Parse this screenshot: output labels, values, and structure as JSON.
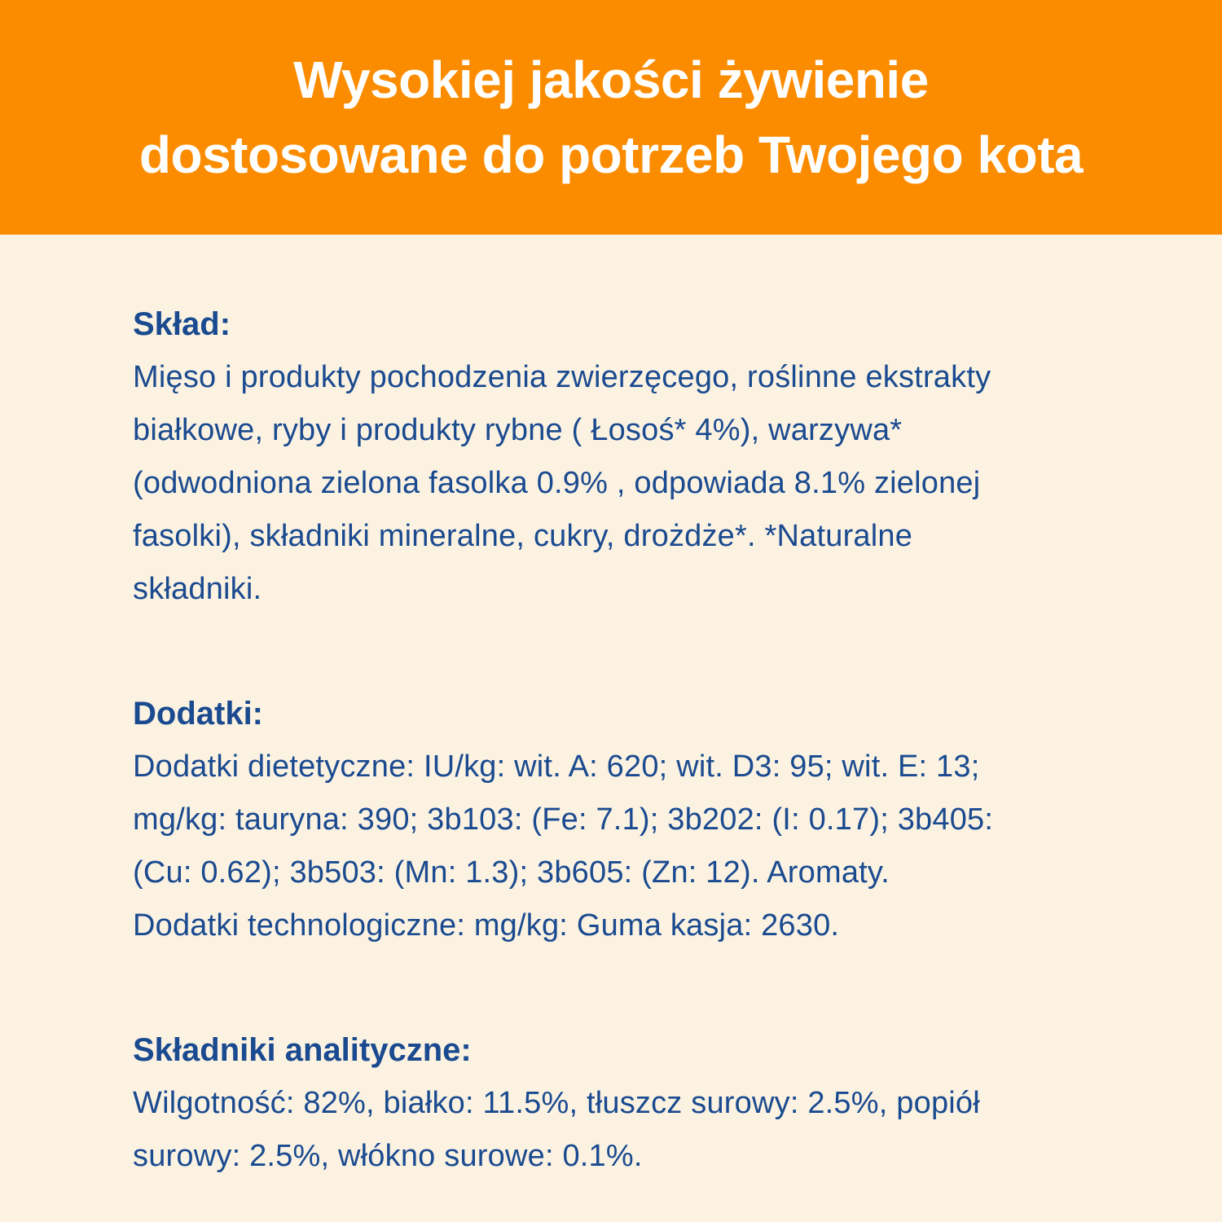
{
  "header": {
    "title": "Wysokiej jakości żywienie\ndostosowane do potrzeb Twojego kota",
    "background_color": "#FB8C00",
    "text_color": "#FFFFFF"
  },
  "page": {
    "background_color": "#FCF2E2",
    "text_color": "#1A4A8F"
  },
  "sections": {
    "composition": {
      "heading": "Skład:",
      "body": "Mięso i produkty pochodzenia zwierzęcego, roślinne ekstrakty\nbiałkowe, ryby i produkty rybne ( Łosoś* 4%), warzywa*\n(odwodniona zielona fasolka 0.9% , odpowiada 8.1% zielonej\nfasolki), składniki mineralne, cukry, drożdże*. *Naturalne\nskładniki."
    },
    "additives": {
      "heading": "Dodatki:",
      "body": "Dodatki dietetyczne: IU/kg: wit. A: 620; wit. D3: 95; wit. E: 13;\nmg/kg: tauryna: 390; 3b103: (Fe: 7.1); 3b202: (I: 0.17); 3b405:\n(Cu: 0.62); 3b503: (Mn: 1.3); 3b605: (Zn: 12). Aromaty.\nDodatki technologiczne: mg/kg: Guma kasja: 2630."
    },
    "analytical": {
      "heading": "Składniki analityczne:",
      "body": "Wilgotność: 82%, białko: 11.5%, tłuszcz surowy: 2.5%, popiół\nsurowy: 2.5%, włókno surowe: 0.1%."
    }
  }
}
